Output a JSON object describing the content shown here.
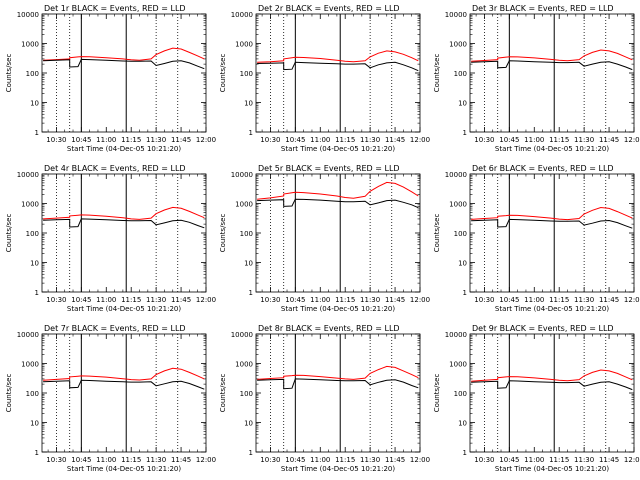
{
  "figure": {
    "start_time_label": "Start Time (04-Dec-05 10:21:20)",
    "ylabel": "Counts/sec",
    "ylim": [
      1,
      10000
    ],
    "yscale": "log",
    "xlim": [
      "10:21:20",
      "12:00:00"
    ],
    "x_tick_labels": [
      "10:30",
      "10:45",
      "11:00",
      "11:15",
      "11:30",
      "11:45",
      "12:00"
    ],
    "y_tick_labels": [
      "1",
      "10",
      "100",
      "1000",
      "10000"
    ],
    "colors": {
      "events": "#000000",
      "lld": "#ff0000",
      "axes": "#000000"
    },
    "dotted_marker_times": [
      "10:30",
      "10:38",
      "11:30",
      "11:43"
    ],
    "solid_marker_times": [
      "10:45",
      "11:12"
    ]
  },
  "chart_data": [
    {
      "type": "line",
      "title": "Det 1r BLACK = Events, RED = LLD",
      "xlabel": "Start Time (04-Dec-05 10:21:20)",
      "ylabel": "Counts/sec",
      "yscale": "log",
      "ylim": [
        1,
        10000
      ],
      "x": [
        "10:22",
        "10:30",
        "10:38",
        "10:38",
        "10:43",
        "10:45",
        "10:50",
        "11:00",
        "11:10",
        "11:15",
        "11:20",
        "11:27",
        "11:30",
        "11:35",
        "11:40",
        "11:45",
        "11:50",
        "11:55",
        "11:59"
      ],
      "series": [
        {
          "name": "BLACK = Events",
          "values": [
            260,
            270,
            280,
            160,
            165,
            290,
            285,
            270,
            255,
            250,
            250,
            255,
            180,
            210,
            250,
            260,
            220,
            170,
            140
          ]
        },
        {
          "name": "RED = LLD",
          "values": [
            270,
            285,
            300,
            330,
            350,
            360,
            355,
            330,
            300,
            280,
            270,
            300,
            420,
            560,
            700,
            650,
            500,
            380,
            300
          ]
        }
      ]
    },
    {
      "type": "line",
      "title": "Det 2r BLACK = Events, RED = LLD",
      "xlabel": "Start Time (04-Dec-05 10:21:20)",
      "ylabel": "Counts/sec",
      "yscale": "log",
      "ylim": [
        1,
        10000
      ],
      "x": [
        "10:22",
        "10:30",
        "10:38",
        "10:38",
        "10:43",
        "10:45",
        "10:50",
        "11:00",
        "11:10",
        "11:15",
        "11:20",
        "11:27",
        "11:30",
        "11:35",
        "11:40",
        "11:45",
        "11:50",
        "11:55",
        "11:59"
      ],
      "series": [
        {
          "name": "BLACK = Events",
          "values": [
            210,
            215,
            220,
            130,
            135,
            230,
            225,
            215,
            205,
            200,
            200,
            205,
            150,
            190,
            220,
            230,
            190,
            150,
            120
          ]
        },
        {
          "name": "RED = LLD",
          "values": [
            230,
            240,
            260,
            300,
            330,
            340,
            335,
            310,
            270,
            250,
            240,
            260,
            350,
            470,
            560,
            520,
            430,
            330,
            260
          ]
        }
      ]
    },
    {
      "type": "line",
      "title": "Det 3r BLACK = Events, RED = LLD",
      "xlabel": "Start Time (04-Dec-05 10:21:20)",
      "ylabel": "Counts/sec",
      "yscale": "log",
      "ylim": [
        1,
        10000
      ],
      "x": [
        "10:22",
        "10:30",
        "10:38",
        "10:38",
        "10:43",
        "10:45",
        "10:50",
        "11:00",
        "11:10",
        "11:15",
        "11:20",
        "11:27",
        "11:30",
        "11:35",
        "11:40",
        "11:45",
        "11:50",
        "11:55",
        "11:59"
      ],
      "series": [
        {
          "name": "BLACK = Events",
          "values": [
            230,
            240,
            250,
            150,
            155,
            260,
            255,
            240,
            230,
            225,
            225,
            230,
            170,
            200,
            230,
            240,
            200,
            160,
            130
          ]
        },
        {
          "name": "RED = LLD",
          "values": [
            250,
            265,
            285,
            320,
            345,
            355,
            350,
            325,
            290,
            270,
            260,
            285,
            380,
            500,
            600,
            560,
            460,
            350,
            280
          ]
        }
      ]
    },
    {
      "type": "line",
      "title": "Det 4r BLACK = Events, RED = LLD",
      "xlabel": "Start Time (04-Dec-05 10:21:20)",
      "ylabel": "Counts/sec",
      "yscale": "log",
      "ylim": [
        1,
        10000
      ],
      "x": [
        "10:22",
        "10:30",
        "10:38",
        "10:38",
        "10:43",
        "10:45",
        "10:50",
        "11:00",
        "11:10",
        "11:15",
        "11:20",
        "11:27",
        "11:30",
        "11:35",
        "11:40",
        "11:45",
        "11:50",
        "11:55",
        "11:59"
      ],
      "series": [
        {
          "name": "BLACK = Events",
          "values": [
            270,
            280,
            290,
            160,
            165,
            300,
            295,
            280,
            265,
            260,
            260,
            265,
            190,
            220,
            260,
            270,
            230,
            180,
            150
          ]
        },
        {
          "name": "RED = LLD",
          "values": [
            300,
            320,
            340,
            380,
            400,
            410,
            405,
            370,
            330,
            300,
            290,
            320,
            450,
            600,
            740,
            690,
            540,
            410,
            330
          ]
        }
      ]
    },
    {
      "type": "line",
      "title": "Det 5r BLACK = Events, RED = LLD",
      "xlabel": "Start Time (04-Dec-05 10:21:20)",
      "ylabel": "Counts/sec",
      "yscale": "log",
      "ylim": [
        1,
        10000
      ],
      "x": [
        "10:22",
        "10:30",
        "10:38",
        "10:38",
        "10:43",
        "10:45",
        "10:50",
        "11:00",
        "11:10",
        "11:15",
        "11:20",
        "11:27",
        "11:30",
        "11:35",
        "11:40",
        "11:45",
        "11:50",
        "11:55",
        "11:59"
      ],
      "series": [
        {
          "name": "BLACK = Events",
          "values": [
            1250,
            1300,
            1350,
            800,
            820,
            1400,
            1380,
            1300,
            1200,
            1150,
            1150,
            1200,
            900,
            1050,
            1250,
            1300,
            1100,
            900,
            720
          ]
        },
        {
          "name": "RED = LLD",
          "values": [
            1400,
            1550,
            1800,
            2100,
            2300,
            2400,
            2350,
            2100,
            1800,
            1600,
            1500,
            1750,
            2600,
            3800,
            5200,
            4800,
            3600,
            2500,
            1800
          ]
        }
      ]
    },
    {
      "type": "line",
      "title": "Det 6r BLACK = Events, RED = LLD",
      "xlabel": "Start Time (04-Dec-05 10:21:20)",
      "ylabel": "Counts/sec",
      "yscale": "log",
      "ylim": [
        1,
        10000
      ],
      "x": [
        "10:22",
        "10:30",
        "10:38",
        "10:38",
        "10:43",
        "10:45",
        "10:50",
        "11:00",
        "11:10",
        "11:15",
        "11:20",
        "11:27",
        "11:30",
        "11:35",
        "11:40",
        "11:45",
        "11:50",
        "11:55",
        "11:59"
      ],
      "series": [
        {
          "name": "BLACK = Events",
          "values": [
            260,
            270,
            280,
            160,
            165,
            290,
            285,
            270,
            255,
            250,
            250,
            255,
            185,
            215,
            255,
            265,
            225,
            175,
            145
          ]
        },
        {
          "name": "RED = LLD",
          "values": [
            290,
            310,
            330,
            370,
            390,
            400,
            395,
            360,
            320,
            295,
            285,
            310,
            440,
            590,
            730,
            680,
            530,
            400,
            320
          ]
        }
      ]
    },
    {
      "type": "line",
      "title": "Det 7r BLACK = Events, RED = LLD",
      "xlabel": "Start Time (04-Dec-05 10:21:20)",
      "ylabel": "Counts/sec",
      "yscale": "log",
      "ylim": [
        1,
        10000
      ],
      "x": [
        "10:22",
        "10:30",
        "10:38",
        "10:38",
        "10:43",
        "10:45",
        "10:50",
        "11:00",
        "11:10",
        "11:15",
        "11:20",
        "11:27",
        "11:30",
        "11:35",
        "11:40",
        "11:45",
        "11:50",
        "11:55",
        "11:59"
      ],
      "series": [
        {
          "name": "BLACK = Events",
          "values": [
            240,
            250,
            260,
            150,
            155,
            270,
            265,
            250,
            240,
            235,
            235,
            240,
            175,
            205,
            240,
            250,
            210,
            165,
            135
          ]
        },
        {
          "name": "RED = LLD",
          "values": [
            270,
            290,
            310,
            350,
            370,
            380,
            375,
            345,
            305,
            285,
            275,
            300,
            420,
            560,
            690,
            640,
            500,
            380,
            300
          ]
        }
      ]
    },
    {
      "type": "line",
      "title": "Det 8r BLACK = Events, RED = LLD",
      "xlabel": "Start Time (04-Dec-05 10:21:20)",
      "ylabel": "Counts/sec",
      "yscale": "log",
      "ylim": [
        1,
        10000
      ],
      "x": [
        "10:22",
        "10:30",
        "10:38",
        "10:38",
        "10:43",
        "10:45",
        "10:50",
        "11:00",
        "11:10",
        "11:15",
        "11:20",
        "11:27",
        "11:30",
        "11:35",
        "11:40",
        "11:45",
        "11:50",
        "11:55",
        "11:59"
      ],
      "series": [
        {
          "name": "BLACK = Events",
          "values": [
            270,
            280,
            290,
            140,
            145,
            300,
            295,
            280,
            265,
            260,
            260,
            265,
            190,
            230,
            270,
            280,
            235,
            180,
            150
          ]
        },
        {
          "name": "RED = LLD",
          "values": [
            290,
            310,
            330,
            370,
            390,
            400,
            395,
            360,
            320,
            300,
            290,
            320,
            460,
            620,
            800,
            740,
            560,
            420,
            330
          ]
        }
      ]
    },
    {
      "type": "line",
      "title": "Det 9r BLACK = Events, RED = LLD",
      "xlabel": "Start Time (04-Dec-05 10:21:20)",
      "ylabel": "Counts/sec",
      "yscale": "log",
      "ylim": [
        1,
        10000
      ],
      "x": [
        "10:22",
        "10:30",
        "10:38",
        "10:38",
        "10:43",
        "10:45",
        "10:50",
        "11:00",
        "11:10",
        "11:15",
        "11:20",
        "11:27",
        "11:30",
        "11:35",
        "11:40",
        "11:45",
        "11:50",
        "11:55",
        "11:59"
      ],
      "series": [
        {
          "name": "BLACK = Events",
          "values": [
            230,
            240,
            250,
            145,
            150,
            260,
            255,
            240,
            230,
            225,
            225,
            230,
            170,
            200,
            230,
            240,
            200,
            160,
            130
          ]
        },
        {
          "name": "RED = LLD",
          "values": [
            250,
            270,
            290,
            330,
            350,
            360,
            355,
            325,
            290,
            270,
            260,
            285,
            380,
            500,
            600,
            560,
            460,
            350,
            280
          ]
        }
      ]
    }
  ]
}
